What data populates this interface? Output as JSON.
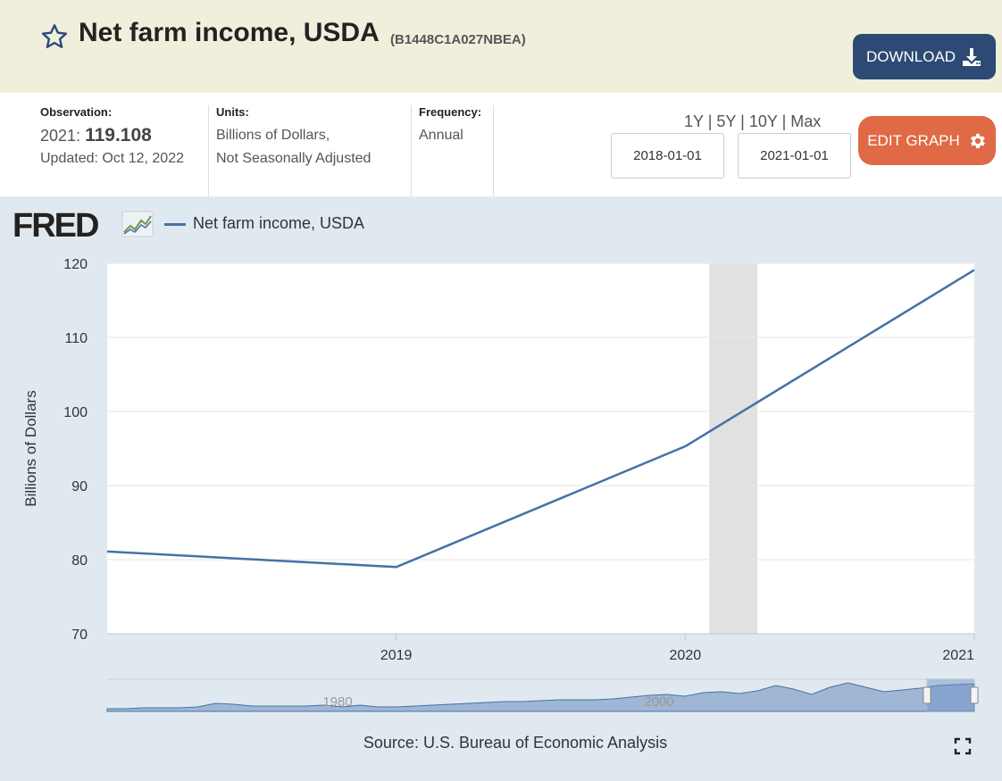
{
  "header": {
    "title": "Net farm income, USDA",
    "series_id": "(B1448C1A027NBEA)",
    "download_label": "DOWNLOAD",
    "star_icon": "star-outline-icon",
    "download_icon": "download-icon"
  },
  "meta": {
    "observation_label": "Observation:",
    "observation_year": "2021:",
    "observation_value": "119.108",
    "updated": "Updated: Oct 12, 2022",
    "units_label": "Units:",
    "units_line1": "Billions of Dollars,",
    "units_line2": "Not Seasonally Adjusted",
    "frequency_label": "Frequency:",
    "frequency_value": "Annual"
  },
  "controls": {
    "range_1y": "1Y",
    "range_5y": "5Y",
    "range_10y": "10Y",
    "range_max": "Max",
    "sep": "|",
    "start_date": "2018-01-01",
    "end_date": "2021-01-01",
    "edit_label": "EDIT GRAPH",
    "edit_icon": "gear-icon"
  },
  "chart": {
    "logo_text": "FRED",
    "legend_label": "Net farm income, USDA",
    "source": "Source: U.S. Bureau of Economic Analysis",
    "line_color": "#4572a7",
    "recession_color": "#e1e1e1",
    "navigator_labels": [
      "1980",
      "2000"
    ]
  },
  "chart_data": {
    "type": "line",
    "ylabel": "Billions of Dollars",
    "xlabel": "",
    "x": [
      "2018",
      "2019",
      "2020",
      "2021"
    ],
    "x_tick_labels": [
      "2019",
      "2020",
      "2021"
    ],
    "y_ticks": [
      70,
      80,
      90,
      100,
      110,
      120
    ],
    "ylim": [
      70,
      120
    ],
    "series": [
      {
        "name": "Net farm income, USDA",
        "values": [
          81.1,
          79.0,
          95.3,
          119.1
        ]
      }
    ],
    "recession": {
      "start": "2020-02",
      "end": "2020-04"
    },
    "grid": true
  }
}
